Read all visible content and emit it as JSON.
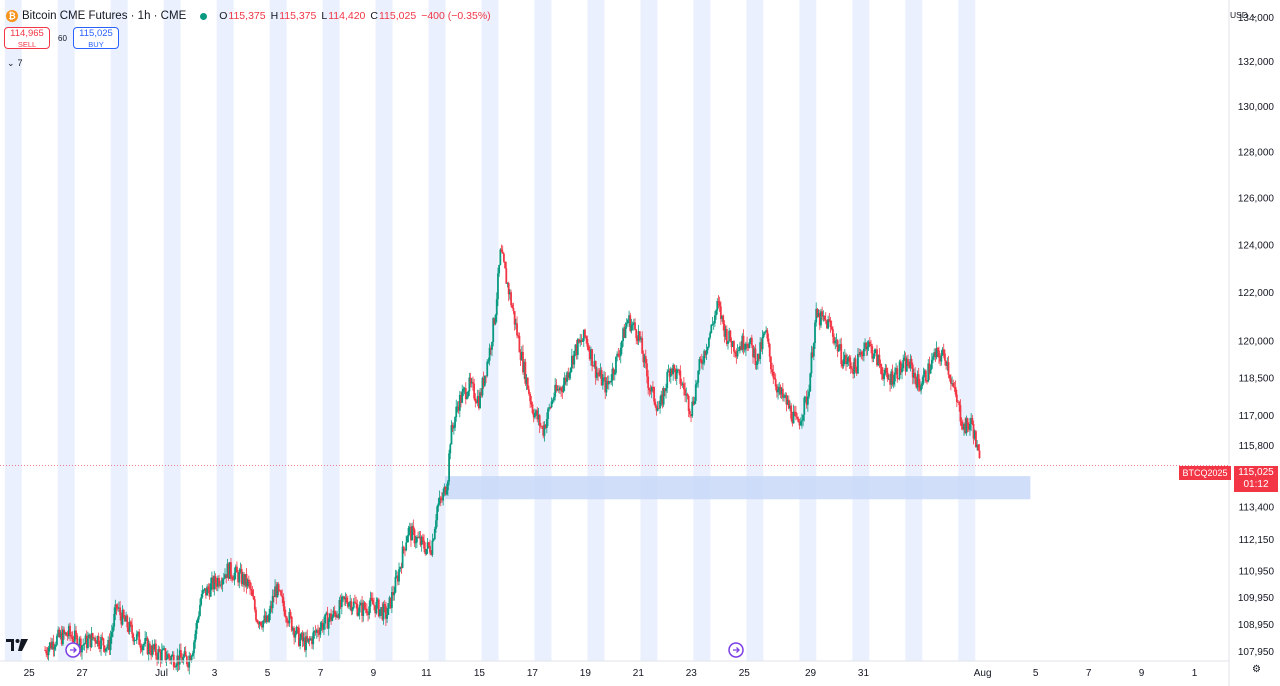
{
  "header": {
    "symbol_icon": "bitcoin-icon",
    "symbol_glyph": "₿",
    "title": "Bitcoin CME Futures · 1h · CME",
    "status_dot": "market-open-dot",
    "ohlc": {
      "o_key": "O",
      "o_val": "115,375",
      "h_key": "H",
      "h_val": "115,375",
      "l_key": "L",
      "l_val": "114,420",
      "c_key": "C",
      "c_val": "115,025",
      "change": "−400 (−0.35%)"
    }
  },
  "trade": {
    "sell_price": "114,965",
    "sell_label": "SELL",
    "spread": "60",
    "buy_price": "115,025",
    "buy_label": "BUY"
  },
  "indicator_toggle": {
    "chevron": "⌄",
    "count": "7"
  },
  "currency_menu": {
    "label": "USD",
    "chevron": "⌄"
  },
  "last_price_tag": {
    "contract": "BTCQ2025",
    "price": "115,025",
    "countdown": "01:12"
  },
  "settings_icon": "gear-icon",
  "settings_glyph": "⚙",
  "colors": {
    "up": "#089981",
    "down": "#f23645",
    "session_band": "#eaf0fd",
    "zone": "#c8d8f8",
    "accent": "#2962ff",
    "bitcoin": "#f7931a"
  },
  "chart_data": {
    "type": "candlestick",
    "timeframe": "1h",
    "symbol": "BTCQ2025",
    "x_axis": {
      "tick_labels": [
        "1",
        "25",
        "27",
        "Jul",
        "3",
        "5",
        "7",
        "9",
        "11",
        "15",
        "17",
        "19",
        "21",
        "23",
        "25",
        "29",
        "31",
        "Aug",
        "5",
        "7",
        "9",
        "1"
      ],
      "tick_days": [
        0.5,
        25,
        27,
        30,
        32,
        34,
        36,
        38,
        40,
        42,
        44,
        46,
        48,
        50,
        52,
        54.5,
        56.5,
        61,
        63,
        65,
        67,
        69
      ],
      "day_range": [
        23.9,
        70.3
      ]
    },
    "y_axis": {
      "tick_labels": [
        "134,000",
        "132,000",
        "130,000",
        "128,000",
        "126,000",
        "124,000",
        "122,000",
        "120,000",
        "118,500",
        "117,000",
        "115,800",
        "113,400",
        "112,150",
        "110,950",
        "109,950",
        "108,950",
        "107,950"
      ],
      "tick_values": [
        134000,
        132000,
        130000,
        128000,
        126000,
        124000,
        122000,
        120000,
        118500,
        117000,
        115800,
        113400,
        112150,
        110950,
        109950,
        108950,
        107950
      ],
      "range": [
        107600,
        134800
      ],
      "scale": "log"
    },
    "price_path": [
      [
        25.6,
        108000
      ],
      [
        26.0,
        108400
      ],
      [
        26.5,
        108600
      ],
      [
        27.0,
        108200
      ],
      [
        27.5,
        108500
      ],
      [
        28.0,
        108100
      ],
      [
        28.3,
        109600
      ],
      [
        28.5,
        109200
      ],
      [
        29.0,
        108500
      ],
      [
        29.5,
        108100
      ],
      [
        29.8,
        107900
      ],
      [
        30.5,
        107700
      ],
      [
        31.0,
        107650
      ],
      [
        31.2,
        108200
      ],
      [
        31.5,
        110000
      ],
      [
        32.0,
        110500
      ],
      [
        32.5,
        111000
      ],
      [
        33.0,
        110700
      ],
      [
        33.3,
        110400
      ],
      [
        33.6,
        109200
      ],
      [
        34.0,
        109000
      ],
      [
        34.3,
        110300
      ],
      [
        34.8,
        109200
      ],
      [
        35.2,
        108400
      ],
      [
        35.5,
        108200
      ],
      [
        36.0,
        108900
      ],
      [
        36.5,
        109300
      ],
      [
        37.0,
        109900
      ],
      [
        37.5,
        109500
      ],
      [
        38.0,
        109700
      ],
      [
        38.5,
        109300
      ],
      [
        38.9,
        110700
      ],
      [
        39.3,
        112500
      ],
      [
        39.7,
        112100
      ],
      [
        40.0,
        111800
      ],
      [
        40.2,
        111900
      ],
      [
        40.4,
        113400
      ],
      [
        40.6,
        113700
      ],
      [
        40.8,
        114500
      ],
      [
        40.9,
        116100
      ],
      [
        41.2,
        117500
      ],
      [
        41.6,
        118200
      ],
      [
        42.0,
        117600
      ],
      [
        42.4,
        119700
      ],
      [
        42.6,
        121200
      ],
      [
        42.8,
        123700
      ],
      [
        43.2,
        121600
      ],
      [
        43.6,
        119300
      ],
      [
        44.0,
        117300
      ],
      [
        44.4,
        116400
      ],
      [
        44.8,
        117800
      ],
      [
        45.2,
        118300
      ],
      [
        45.6,
        119600
      ],
      [
        46.0,
        120200
      ],
      [
        46.4,
        118800
      ],
      [
        46.8,
        118100
      ],
      [
        47.2,
        119300
      ],
      [
        47.6,
        120900
      ],
      [
        48.0,
        120300
      ],
      [
        48.4,
        118200
      ],
      [
        48.8,
        117200
      ],
      [
        49.2,
        119000
      ],
      [
        49.6,
        118400
      ],
      [
        50.0,
        117200
      ],
      [
        50.3,
        118900
      ],
      [
        50.7,
        120300
      ],
      [
        51.0,
        121500
      ],
      [
        51.3,
        120300
      ],
      [
        51.7,
        119700
      ],
      [
        52.1,
        120100
      ],
      [
        52.5,
        119200
      ],
      [
        52.8,
        120400
      ],
      [
        53.0,
        119100
      ],
      [
        53.3,
        117900
      ],
      [
        53.6,
        117500
      ],
      [
        54.0,
        116600
      ],
      [
        54.4,
        117800
      ],
      [
        54.7,
        121000
      ],
      [
        55.2,
        120700
      ],
      [
        55.7,
        119300
      ],
      [
        56.2,
        118900
      ],
      [
        56.6,
        120000
      ],
      [
        57.0,
        119300
      ],
      [
        57.4,
        118400
      ],
      [
        57.8,
        118800
      ],
      [
        58.2,
        119100
      ],
      [
        58.6,
        118200
      ],
      [
        58.9,
        118700
      ],
      [
        59.2,
        119400
      ],
      [
        59.6,
        119400
      ],
      [
        59.9,
        118000
      ],
      [
        60.3,
        116500
      ],
      [
        60.6,
        116700
      ],
      [
        60.9,
        115000
      ]
    ],
    "ranges": [
      [
        108000,
        110800
      ],
      [
        110800,
        113000
      ],
      [
        113000,
        115200
      ],
      [
        115800,
        118000
      ],
      [
        118000,
        120800
      ],
      [
        120800,
        124000
      ],
      [
        113700,
        114600
      ]
    ],
    "band_sets": [
      [
        0.0,
        1.0
      ],
      [
        2.0,
        3.0
      ],
      [
        4.0,
        5.0
      ],
      [
        6.0,
        7.0
      ],
      [
        8.0,
        9.0
      ],
      [
        10.0,
        11.0
      ],
      [
        12.0,
        13.0
      ],
      [
        14.0,
        15.0
      ],
      [
        16.0,
        17.0
      ],
      [
        18.0,
        19.0
      ],
      [
        20.0,
        21.0
      ],
      [
        22.0,
        23.0
      ],
      [
        24.0,
        25.0
      ],
      [
        26.0,
        27.0
      ],
      [
        28.0,
        29.0
      ]
    ],
    "zone": {
      "day_from": 40.7,
      "day_to": 62.8,
      "low": 113700,
      "high": 114600
    },
    "last_price": 115025,
    "legend": "top-left",
    "grid": false
  }
}
